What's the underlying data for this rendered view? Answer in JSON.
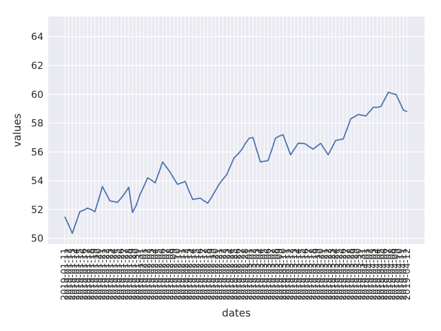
{
  "chart_data": {
    "type": "line",
    "xlabel": "dates",
    "ylabel": "values",
    "ylim": [
      49.6,
      65.4
    ],
    "y_ticks": [
      50,
      52,
      54,
      56,
      58,
      60,
      62,
      64
    ],
    "grid": true,
    "colors": {
      "background": "#eaeaf2",
      "grid": "#ffffff",
      "line": "#4c72b0",
      "text": "#262626"
    },
    "series": [
      {
        "x": [
          "2019-01-11",
          "2019-01-12",
          "2019-01-13",
          "2019-01-14",
          "2019-01-15",
          "2019-01-16",
          "2019-01-17",
          "2019-01-18",
          "2019-01-19",
          "2019-01-20",
          "2019-01-21",
          "2019-01-22",
          "2019-01-23",
          "2019-01-24",
          "2019-01-25",
          "2019-01-26",
          "2019-01-27",
          "2019-01-28",
          "2019-01-29",
          "2019-01-30",
          "2019-01-31",
          "2019-02-01",
          "2019-02-02",
          "2019-02-03",
          "2019-02-04",
          "2019-02-05",
          "2019-02-06",
          "2019-02-07",
          "2019-02-08",
          "2019-02-09",
          "2019-02-10",
          "2019-02-11",
          "2019-02-12",
          "2019-02-13",
          "2019-02-14",
          "2019-02-15",
          "2019-02-16",
          "2019-02-17",
          "2019-02-18",
          "2019-02-19",
          "2019-02-20",
          "2019-02-21",
          "2019-02-22",
          "2019-02-23",
          "2019-02-24",
          "2019-02-25",
          "2019-02-26",
          "2019-02-27",
          "2019-02-28",
          "2019-03-01",
          "2019-03-02",
          "2019-03-03",
          "2019-03-04",
          "2019-03-05",
          "2019-03-06",
          "2019-03-07",
          "2019-03-08",
          "2019-03-09",
          "2019-03-10",
          "2019-03-11",
          "2019-03-12",
          "2019-03-13",
          "2019-03-14",
          "2019-03-15",
          "2019-03-16",
          "2019-03-17",
          "2019-03-18",
          "2019-03-19",
          "2019-03-20",
          "2019-03-21",
          "2019-03-22",
          "2019-03-23",
          "2019-03-24",
          "2019-03-25",
          "2019-03-26",
          "2019-03-27",
          "2019-03-28",
          "2019-03-29",
          "2019-03-30",
          "2019-03-31",
          "2019-04-01",
          "2019-04-02",
          "2019-04-03",
          "2019-04-04",
          "2019-04-05",
          "2019-04-06",
          "2019-04-07",
          "2019-04-08",
          "2019-04-09",
          "2019-04-10",
          "2019-04-11",
          "2019-04-12"
        ],
        "values": [
          51.5,
          50.95,
          50.35,
          51.1,
          51.85,
          51.95,
          52.1,
          52.0,
          51.85,
          52.7,
          53.6,
          53.1,
          52.6,
          52.55,
          52.5,
          52.8,
          53.15,
          53.55,
          51.8,
          52.3,
          53.05,
          53.6,
          54.2,
          54.05,
          53.85,
          54.55,
          55.3,
          54.95,
          54.6,
          54.15,
          53.75,
          53.85,
          53.95,
          53.3,
          52.7,
          52.75,
          52.8,
          52.6,
          52.45,
          52.85,
          53.3,
          53.75,
          54.1,
          54.4,
          55.0,
          55.6,
          55.85,
          56.15,
          56.6,
          56.95,
          57.0,
          56.15,
          55.3,
          55.35,
          55.4,
          56.15,
          56.95,
          57.1,
          57.2,
          56.5,
          55.8,
          56.2,
          56.6,
          56.6,
          56.55,
          56.35,
          56.2,
          56.4,
          56.6,
          56.2,
          55.8,
          56.3,
          56.8,
          56.85,
          56.9,
          57.6,
          58.3,
          58.45,
          58.6,
          58.55,
          58.5,
          58.8,
          59.1,
          59.1,
          59.15,
          59.65,
          60.15,
          60.05,
          60.0,
          59.45,
          58.9,
          58.8
        ]
      }
    ]
  }
}
